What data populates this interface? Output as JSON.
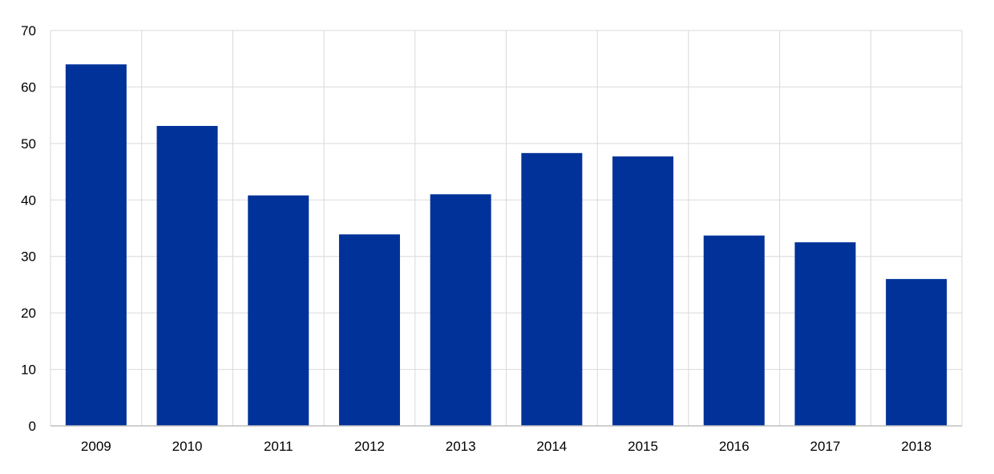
{
  "chart_data": {
    "type": "bar",
    "title": "",
    "xlabel": "",
    "ylabel": "",
    "categories": [
      "2009",
      "2010",
      "2011",
      "2012",
      "2013",
      "2014",
      "2015",
      "2016",
      "2017",
      "2018"
    ],
    "values": [
      64.0,
      53.1,
      40.8,
      33.9,
      41.0,
      48.3,
      47.7,
      33.7,
      32.5,
      26.0
    ],
    "ylim": [
      0,
      70
    ],
    "yticks": [
      0,
      10,
      20,
      30,
      40,
      50,
      60,
      70
    ],
    "grid": true,
    "bar_color": "#003299",
    "grid_color": "#d9d9d9"
  }
}
